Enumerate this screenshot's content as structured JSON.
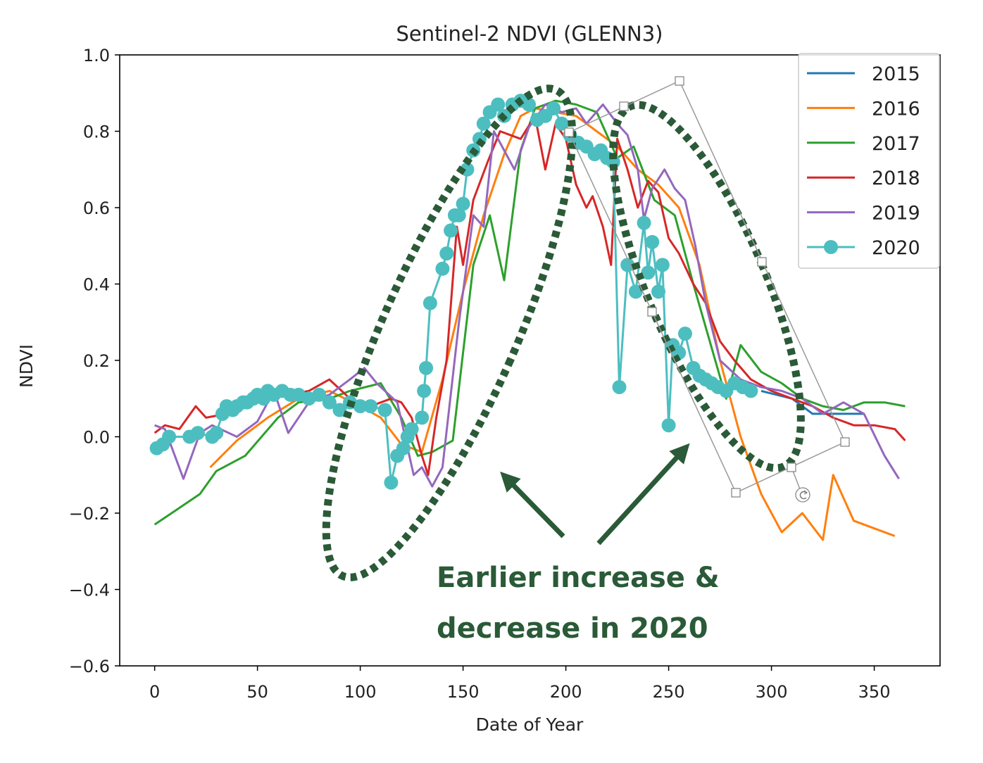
{
  "chart_data": {
    "type": "line",
    "title": "Sentinel-2 NDVI (GLENN3)",
    "xlabel": "Date of Year",
    "ylabel": "NDVI",
    "xlim": [
      -17,
      382
    ],
    "ylim": [
      -0.6,
      1.0
    ],
    "x_ticks": [
      0,
      50,
      100,
      150,
      200,
      250,
      300,
      350
    ],
    "x_tick_labels": [
      "0",
      "50",
      "100",
      "150",
      "200",
      "250",
      "300",
      "350"
    ],
    "y_ticks": [
      -0.6,
      -0.4,
      -0.2,
      0.0,
      0.2,
      0.4,
      0.6,
      0.8,
      1.0
    ],
    "y_tick_labels": [
      "−0.6",
      "−0.4",
      "−0.2",
      "0.0",
      "0.2",
      "0.4",
      "0.6",
      "0.8",
      "1.0"
    ],
    "grid": false,
    "legend_position": "top-right",
    "series": [
      {
        "name": "2015",
        "color": "#1f77b4",
        "marker": "none",
        "x": [
          295,
          310,
          320,
          330,
          345
        ],
        "y": [
          0.12,
          0.1,
          0.06,
          0.06,
          0.06
        ]
      },
      {
        "name": "2016",
        "color": "#ff7f0e",
        "marker": "none",
        "x": [
          27,
          40,
          55,
          70,
          85,
          100,
          110,
          120,
          130,
          140,
          150,
          160,
          170,
          178,
          185,
          195,
          205,
          215,
          225,
          235,
          245,
          255,
          265,
          275,
          285,
          295,
          305,
          315,
          325,
          330,
          340,
          350,
          360
        ],
        "y": [
          -0.08,
          -0.01,
          0.05,
          0.1,
          0.12,
          0.08,
          0.05,
          -0.02,
          -0.04,
          0.15,
          0.38,
          0.58,
          0.74,
          0.84,
          0.86,
          0.85,
          0.84,
          0.8,
          0.76,
          0.7,
          0.66,
          0.6,
          0.45,
          0.2,
          0.0,
          -0.15,
          -0.25,
          -0.2,
          -0.27,
          -0.1,
          -0.22,
          -0.24,
          -0.26
        ]
      },
      {
        "name": "2017",
        "color": "#2ca02c",
        "marker": "none",
        "x": [
          0,
          22,
          30,
          44,
          60,
          70,
          85,
          95,
          110,
          120,
          128,
          135,
          145,
          155,
          163,
          170,
          178,
          185,
          195,
          205,
          215,
          225,
          233,
          243,
          253,
          262,
          270,
          278,
          285,
          295,
          305,
          315,
          325,
          335,
          345,
          355,
          365
        ],
        "y": [
          -0.23,
          -0.15,
          -0.09,
          -0.05,
          0.05,
          0.09,
          0.1,
          0.12,
          0.14,
          0.05,
          -0.05,
          -0.04,
          -0.01,
          0.45,
          0.58,
          0.41,
          0.75,
          0.86,
          0.88,
          0.87,
          0.85,
          0.73,
          0.76,
          0.62,
          0.58,
          0.4,
          0.25,
          0.1,
          0.24,
          0.17,
          0.14,
          0.1,
          0.08,
          0.07,
          0.09,
          0.09,
          0.08
        ]
      },
      {
        "name": "2018",
        "color": "#d62728",
        "marker": "none",
        "x": [
          0,
          5,
          12,
          20,
          25,
          35,
          50,
          65,
          75,
          85,
          95,
          105,
          115,
          120,
          125,
          130,
          133,
          137,
          142,
          147,
          150,
          155,
          162,
          168,
          178,
          185,
          190,
          195,
          200,
          205,
          210,
          213,
          218,
          222,
          225,
          230,
          235,
          240,
          245,
          250,
          255,
          262,
          268,
          275,
          282,
          290,
          300,
          310,
          320,
          330,
          340,
          350,
          360,
          365
        ],
        "y": [
          0.01,
          0.03,
          0.02,
          0.08,
          0.05,
          0.06,
          0.1,
          0.11,
          0.12,
          0.15,
          0.1,
          0.08,
          0.1,
          0.09,
          0.05,
          -0.05,
          -0.1,
          0.05,
          0.2,
          0.55,
          0.45,
          0.62,
          0.72,
          0.8,
          0.78,
          0.84,
          0.7,
          0.82,
          0.78,
          0.66,
          0.6,
          0.63,
          0.55,
          0.45,
          0.78,
          0.7,
          0.6,
          0.67,
          0.64,
          0.52,
          0.48,
          0.4,
          0.35,
          0.25,
          0.2,
          0.15,
          0.12,
          0.1,
          0.08,
          0.05,
          0.03,
          0.03,
          0.02,
          -0.01
        ]
      },
      {
        "name": "2019",
        "color": "#9467bd",
        "marker": "none",
        "x": [
          0,
          5,
          14,
          22,
          28,
          40,
          50,
          58,
          65,
          75,
          85,
          95,
          102,
          108,
          118,
          126,
          130,
          135,
          140,
          148,
          155,
          160,
          165,
          175,
          182,
          190,
          198,
          205,
          210,
          218,
          225,
          230,
          235,
          238,
          242,
          248,
          253,
          258,
          263,
          268,
          275,
          285,
          295,
          305,
          315,
          325,
          335,
          345,
          355,
          362
        ],
        "y": [
          0.03,
          0.02,
          -0.11,
          0.01,
          0.03,
          0.0,
          0.04,
          0.12,
          0.01,
          0.09,
          0.11,
          0.15,
          0.18,
          0.14,
          0.09,
          -0.1,
          -0.08,
          -0.13,
          -0.08,
          0.3,
          0.58,
          0.55,
          0.8,
          0.7,
          0.81,
          0.87,
          0.85,
          0.86,
          0.82,
          0.87,
          0.82,
          0.79,
          0.7,
          0.57,
          0.65,
          0.7,
          0.65,
          0.62,
          0.5,
          0.35,
          0.2,
          0.15,
          0.13,
          0.12,
          0.1,
          0.06,
          0.09,
          0.06,
          -0.05,
          -0.11
        ]
      },
      {
        "name": "2020",
        "color": "#4dbec0",
        "marker": "circle",
        "x": [
          1,
          4,
          7,
          17,
          21,
          28,
          30,
          33,
          35,
          38,
          40,
          43,
          45,
          48,
          50,
          53,
          55,
          58,
          62,
          66,
          70,
          75,
          80,
          85,
          90,
          95,
          100,
          105,
          112,
          115,
          118,
          121,
          123,
          125,
          130,
          131,
          132,
          134,
          140,
          142,
          144,
          146,
          148,
          150,
          152,
          155,
          158,
          160,
          163,
          167,
          170,
          174,
          178,
          182,
          186,
          190,
          194,
          198,
          202,
          206,
          210,
          214,
          217,
          220,
          223,
          226,
          230,
          234,
          238,
          240,
          242,
          245,
          247,
          250,
          252,
          255,
          258,
          262,
          265,
          268,
          271,
          274,
          278,
          282,
          286,
          290
        ],
        "y": [
          -0.03,
          -0.02,
          0.0,
          0.0,
          0.01,
          0.0,
          0.01,
          0.06,
          0.08,
          0.07,
          0.08,
          0.09,
          0.09,
          0.1,
          0.11,
          0.1,
          0.12,
          0.11,
          0.12,
          0.11,
          0.11,
          0.1,
          0.11,
          0.09,
          0.07,
          0.09,
          0.08,
          0.08,
          0.07,
          -0.12,
          -0.05,
          -0.03,
          0.0,
          0.02,
          0.05,
          0.12,
          0.18,
          0.35,
          0.44,
          0.48,
          0.54,
          0.58,
          0.58,
          0.61,
          0.7,
          0.75,
          0.78,
          0.82,
          0.85,
          0.87,
          0.84,
          0.87,
          0.88,
          0.87,
          0.83,
          0.84,
          0.86,
          0.82,
          0.79,
          0.77,
          0.76,
          0.74,
          0.75,
          0.73,
          0.72,
          0.13,
          0.45,
          0.38,
          0.56,
          0.43,
          0.51,
          0.38,
          0.45,
          0.03,
          0.24,
          0.22,
          0.27,
          0.18,
          0.16,
          0.15,
          0.14,
          0.13,
          0.12,
          0.14,
          0.13,
          0.12
        ]
      }
    ],
    "annotation": {
      "text_line1": "Earlier increase &",
      "text_line2": "decrease in 2020",
      "color": "#2a5a37"
    }
  }
}
